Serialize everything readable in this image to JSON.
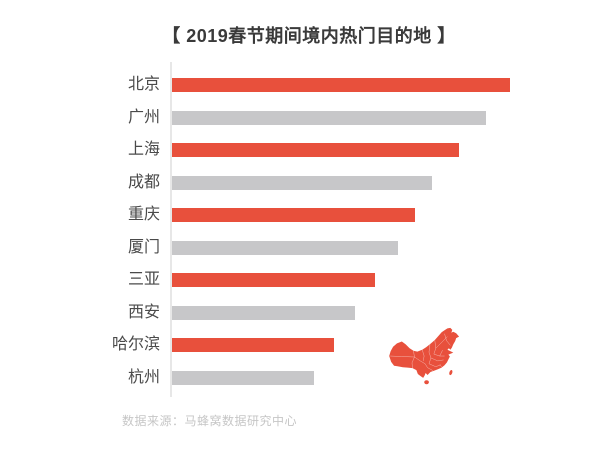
{
  "title": "【 2019春节期间境内热门目的地 】",
  "source": "数据来源：马蜂窝数据研究中心",
  "colors": {
    "accent_red": "#E8503C",
    "bar_gray": "#C7C7C9",
    "title_text": "#3A3A3A",
    "label_text": "#4A4A4A",
    "source_text": "#C6C6C6",
    "axis_line": "#E7E7E7",
    "map_fill": "#E8503C",
    "map_border_lines": "#FFFFFF"
  },
  "chart_data": {
    "type": "bar",
    "orientation": "horizontal",
    "title": "【 2019春节期间境内热门目的地 】",
    "categories": [
      "北京",
      "广州",
      "上海",
      "成都",
      "重庆",
      "厦门",
      "三亚",
      "西安",
      "哈尔滨",
      "杭州"
    ],
    "values": [
      100,
      93,
      85,
      77,
      72,
      67,
      60,
      54,
      48,
      42
    ],
    "bar_colors": [
      "#E8503C",
      "#C7C7C9",
      "#E8503C",
      "#C7C7C9",
      "#E8503C",
      "#C7C7C9",
      "#E8503C",
      "#C7C7C9",
      "#E8503C",
      "#C7C7C9"
    ],
    "xlim": [
      0,
      100
    ],
    "xlabel": "",
    "ylabel": "",
    "grid": false,
    "legend": false,
    "value_labels_shown": false,
    "annotation": "red silhouette map of China at lower right"
  }
}
